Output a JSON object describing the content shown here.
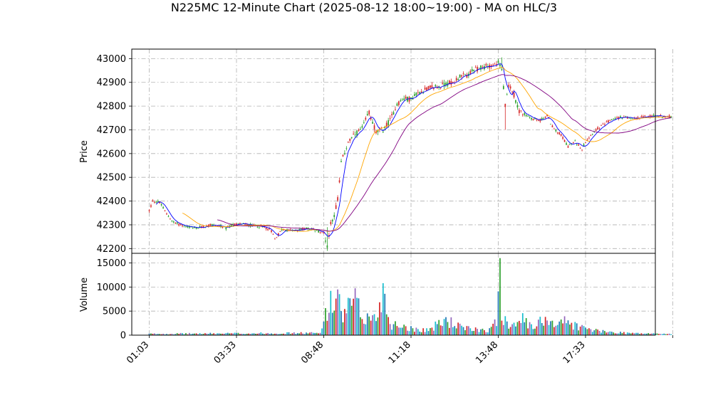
{
  "chart_data": {
    "type": "candlestick",
    "title": "N225MC 12-Minute Chart (2025-08-12 18:00~19:00) - MA on HLC/3",
    "price_panel": {
      "ylabel": "Price",
      "ylim": [
        42180,
        43040
      ],
      "yticks": [
        42200,
        42300,
        42400,
        42500,
        42600,
        42700,
        42800,
        42900,
        43000
      ],
      "grid": true
    },
    "volume_panel": {
      "ylabel": "Volume",
      "ylim": [
        0,
        17000
      ],
      "yticks": [
        0,
        5000,
        10000,
        15000
      ],
      "grid": true
    },
    "x_axis": {
      "xlim": [
        -10,
        290
      ],
      "ticks": [
        {
          "index": 0,
          "label": "01:03"
        },
        {
          "index": 50,
          "label": "03:33"
        },
        {
          "index": 100,
          "label": "08:48"
        },
        {
          "index": 150,
          "label": "11:18"
        },
        {
          "index": 200,
          "label": "13:48"
        },
        {
          "index": 250,
          "label": "17:33"
        },
        {
          "index": 300,
          "label": ""
        }
      ]
    },
    "candle_count": 300,
    "up_color": "#2ca02c",
    "down_color": "#d62728",
    "volume_colors": [
      "#1f77b4",
      "#2ca02c",
      "#d62728",
      "#9467bd",
      "#17becf"
    ],
    "ma_series": [
      {
        "period": 5,
        "color": "#0000ff"
      },
      {
        "period": 20,
        "color": "#ffa500"
      },
      {
        "period": 40,
        "color": "#800080"
      }
    ],
    "anchors": [
      [
        0,
        42360
      ],
      [
        2,
        42400
      ],
      [
        6,
        42395
      ],
      [
        10,
        42345
      ],
      [
        14,
        42310
      ],
      [
        20,
        42295
      ],
      [
        26,
        42285
      ],
      [
        30,
        42290
      ],
      [
        36,
        42300
      ],
      [
        40,
        42295
      ],
      [
        44,
        42285
      ],
      [
        48,
        42300
      ],
      [
        52,
        42305
      ],
      [
        56,
        42300
      ],
      [
        62,
        42295
      ],
      [
        66,
        42290
      ],
      [
        70,
        42275
      ],
      [
        72,
        42240
      ],
      [
        76,
        42280
      ],
      [
        84,
        42275
      ],
      [
        90,
        42285
      ],
      [
        94,
        42280
      ],
      [
        98,
        42270
      ],
      [
        100,
        42270
      ],
      [
        102,
        42205
      ],
      [
        104,
        42310
      ],
      [
        106,
        42340
      ],
      [
        108,
        42410
      ],
      [
        110,
        42560
      ],
      [
        114,
        42650
      ],
      [
        118,
        42680
      ],
      [
        122,
        42705
      ],
      [
        126,
        42775
      ],
      [
        130,
        42690
      ],
      [
        134,
        42700
      ],
      [
        138,
        42740
      ],
      [
        142,
        42810
      ],
      [
        146,
        42830
      ],
      [
        150,
        42830
      ],
      [
        154,
        42855
      ],
      [
        158,
        42870
      ],
      [
        162,
        42880
      ],
      [
        166,
        42880
      ],
      [
        170,
        42895
      ],
      [
        174,
        42900
      ],
      [
        178,
        42925
      ],
      [
        182,
        42930
      ],
      [
        186,
        42950
      ],
      [
        190,
        42960
      ],
      [
        194,
        42970
      ],
      [
        198,
        42975
      ],
      [
        200,
        42985
      ],
      [
        202,
        42950
      ],
      [
        204,
        42800
      ],
      [
        206,
        42880
      ],
      [
        208,
        42870
      ],
      [
        212,
        42780
      ],
      [
        216,
        42760
      ],
      [
        220,
        42745
      ],
      [
        224,
        42740
      ],
      [
        228,
        42760
      ],
      [
        232,
        42700
      ],
      [
        236,
        42680
      ],
      [
        240,
        42630
      ],
      [
        244,
        42650
      ],
      [
        248,
        42620
      ],
      [
        250,
        42650
      ],
      [
        252,
        42670
      ],
      [
        256,
        42700
      ],
      [
        260,
        42720
      ],
      [
        264,
        42740
      ],
      [
        268,
        42750
      ],
      [
        272,
        42755
      ],
      [
        276,
        42745
      ],
      [
        280,
        42750
      ],
      [
        284,
        42755
      ],
      [
        288,
        42760
      ],
      [
        299,
        42755
      ]
    ],
    "volume_anchors": [
      [
        0,
        300
      ],
      [
        50,
        400
      ],
      [
        98,
        500
      ],
      [
        100,
        5500
      ],
      [
        102,
        3500
      ],
      [
        104,
        9200
      ],
      [
        106,
        5000
      ],
      [
        108,
        9500
      ],
      [
        110,
        4000
      ],
      [
        114,
        6000
      ],
      [
        118,
        7600
      ],
      [
        122,
        4000
      ],
      [
        130,
        3800
      ],
      [
        134,
        10800
      ],
      [
        138,
        2500
      ],
      [
        146,
        2200
      ],
      [
        150,
        1500
      ],
      [
        160,
        1200
      ],
      [
        170,
        3500
      ],
      [
        180,
        1500
      ],
      [
        195,
        1200
      ],
      [
        199,
        3000
      ],
      [
        200,
        9000
      ],
      [
        201,
        16000
      ],
      [
        202,
        5500
      ],
      [
        206,
        2200
      ],
      [
        212,
        4200
      ],
      [
        220,
        1500
      ],
      [
        228,
        4500
      ],
      [
        232,
        2500
      ],
      [
        236,
        3500
      ],
      [
        240,
        2800
      ],
      [
        250,
        1500
      ],
      [
        260,
        800
      ],
      [
        280,
        400
      ],
      [
        299,
        300
      ]
    ]
  }
}
